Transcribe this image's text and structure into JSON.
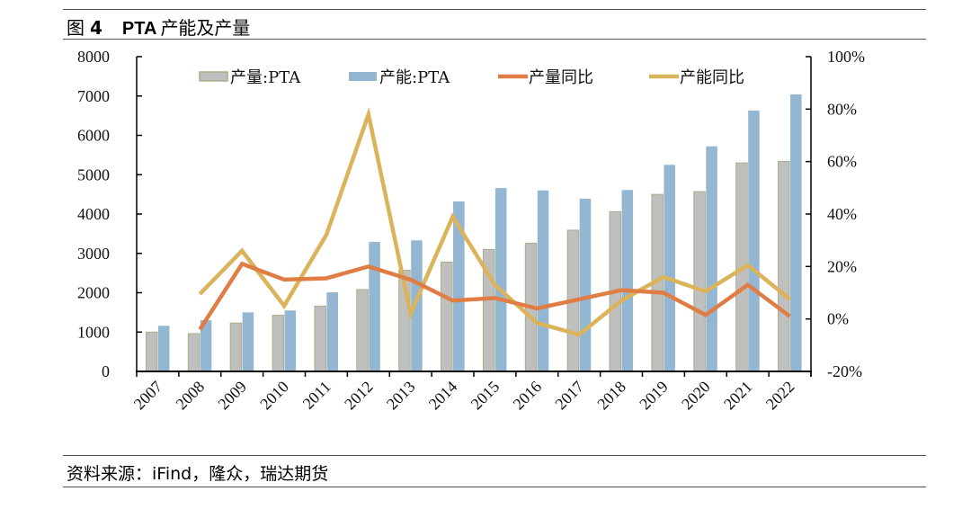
{
  "header": {
    "figure_label": "图",
    "figure_number": "4",
    "title_bold": "PTA",
    "title_rest": "产能及产量"
  },
  "footer": {
    "source": "资料来源：iFind，隆众，瑞达期货"
  },
  "colors": {
    "production_bar": "#bfbfbf",
    "production_bar_border": "#a9ad86",
    "capacity_bar": "#93b6d2",
    "production_yoy_line": "#e07d45",
    "capacity_yoy_line": "#dbb35a",
    "axis": "#000000"
  },
  "chart_data": {
    "type": "bar",
    "title": "PTA 产能及产量",
    "categories": [
      "2007",
      "2008",
      "2009",
      "2010",
      "2011",
      "2012",
      "2013",
      "2014",
      "2015",
      "2016",
      "2017",
      "2018",
      "2019",
      "2020",
      "2021",
      "2022"
    ],
    "y_left": {
      "ylim": [
        0,
        8000
      ],
      "ticks": [
        "0",
        "1000",
        "2000",
        "3000",
        "4000",
        "5000",
        "6000",
        "7000",
        "8000"
      ],
      "tick_values": [
        0,
        1000,
        2000,
        3000,
        4000,
        5000,
        6000,
        7000,
        8000
      ]
    },
    "y_right": {
      "ylim": [
        -20,
        100
      ],
      "ticks": [
        "-20%",
        "0%",
        "20%",
        "40%",
        "60%",
        "80%",
        "100%"
      ],
      "tick_values": [
        -20,
        0,
        20,
        40,
        60,
        80,
        100
      ]
    },
    "legend_position": "top",
    "grid": false,
    "series": [
      {
        "name": "产量:PTA",
        "kind": "bar",
        "axis": "left",
        "values": [
          1000,
          960,
          1230,
          1430,
          1660,
          2080,
          2570,
          2780,
          3100,
          3260,
          3590,
          4060,
          4500,
          4570,
          5300,
          5340
        ]
      },
      {
        "name": "产能:PTA",
        "kind": "bar",
        "axis": "left",
        "values": [
          1160,
          1300,
          1500,
          1550,
          2010,
          3290,
          3330,
          4320,
          4660,
          4600,
          4390,
          4610,
          5250,
          5720,
          6630,
          7040
        ]
      },
      {
        "name": "产量同比",
        "kind": "line",
        "axis": "right",
        "values": [
          null,
          -4,
          21,
          15,
          15.5,
          20,
          15,
          7,
          8,
          4,
          7.5,
          11,
          10,
          1.5,
          13,
          1
        ]
      },
      {
        "name": "产能同比",
        "kind": "line",
        "axis": "right",
        "values": [
          null,
          9.5,
          26,
          5,
          32,
          78,
          2,
          39,
          13,
          -1.5,
          -6,
          7,
          16,
          10.5,
          20.5,
          7.5
        ]
      }
    ]
  }
}
